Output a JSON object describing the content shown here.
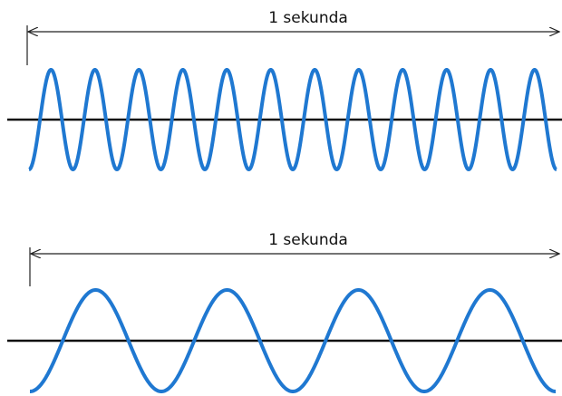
{
  "panels": [
    {
      "label": "1 sekunda"
    },
    {
      "label": "1 sekunda"
    }
  ]
}
